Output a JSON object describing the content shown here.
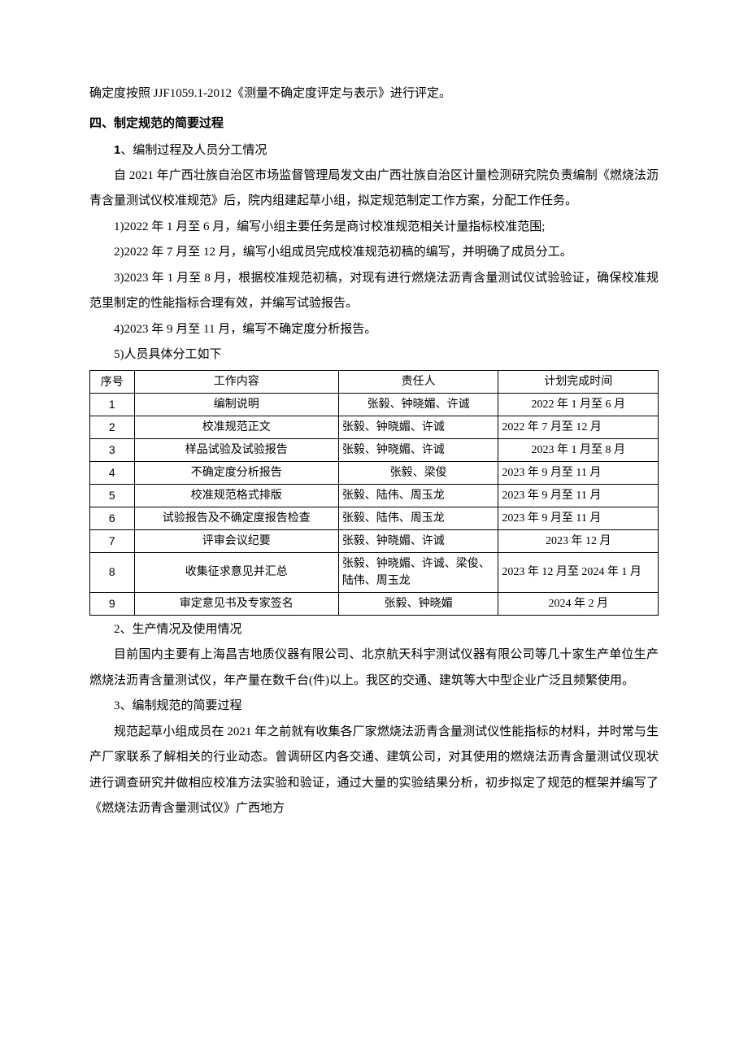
{
  "p_intro": "确定度按照 JJF1059.1-2012《测量不确定度评定与表示》进行评定。",
  "h4": "四、制定规范的简要过程",
  "s1_prefix": "1",
  "s1_rest": "、编制过程及人员分工情况",
  "p1": "自 2021 年广西壮族自治区市场监督管理局发文由广西壮族自治区计量检测研究院负责编制《燃烧法沥青含量测试仪校准规范》后，院内组建起草小组，拟定规范制定工作方案，分配工作任务。",
  "p2": "1)2022 年 1 月至 6 月，编写小组主要任务是商讨校准规范相关计量指标校准范围;",
  "p3": "2)2022 年 7 月至 12 月，编写小组成员完成校准规范初稿的编写，并明确了成员分工。",
  "p4": "3)2023 年 1 月至 8 月，根据校准规范初稿，对现有进行燃烧法沥青含量测试仪试验验证，确保校准规范里制定的性能指标合理有效，并编写试验报告。",
  "p5": "4)2023 年 9 月至 11 月，编写不确定度分析报告。",
  "p6": "5)人员具体分工如下",
  "table": {
    "headers": {
      "c1": "序号",
      "c2": "工作内容",
      "c3": "责任人",
      "c4": "计划完成时间"
    },
    "rows": [
      {
        "n": "1",
        "task": "编制说明",
        "person": "张毅、钟晓媚、许诚",
        "time": "2022 年 1 月至 6 月",
        "pc": true,
        "tc": true
      },
      {
        "n": "2",
        "task": "校准规范正文",
        "person": "张毅、钟晓媚、许诚",
        "time": "2022 年 7 月至 12 月",
        "pc": false,
        "tc": false
      },
      {
        "n": "3",
        "task": "样品试验及试验报告",
        "person": "张毅、钟晓媚、许诚",
        "time": "2023 年 1 月至 8 月",
        "pc": false,
        "tc": true
      },
      {
        "n": "4",
        "task": "不确定度分析报告",
        "person": "张毅、梁俊",
        "time": "2023 年 9 月至 11 月",
        "pc": true,
        "tc": false
      },
      {
        "n": "5",
        "task": "校准规范格式排版",
        "person": "张毅、陆伟、周玉龙",
        "time": "2023 年 9 月至 11 月",
        "pc": false,
        "tc": false
      },
      {
        "n": "6",
        "task": "试验报告及不确定度报告检查",
        "person": "张毅、陆伟、周玉龙",
        "time": "2023 年 9 月至 11 月",
        "pc": false,
        "tc": false
      },
      {
        "n": "7",
        "task": "评审会议纪要",
        "person": "张毅、钟晓媚、许诚",
        "time": "2023 年 12 月",
        "pc": false,
        "tc": true
      },
      {
        "n": "8",
        "task": "收集征求意见并汇总",
        "person": "张毅、钟晓媚、许诚、梁俊、陆伟、周玉龙",
        "time": "2023 年 12 月至 2024 年 1 月",
        "pc": false,
        "tc": false
      },
      {
        "n": "9",
        "task": "审定意见书及专家签名",
        "person": "张毅、钟晓媚",
        "time": "2024 年 2 月",
        "pc": true,
        "tc": true
      }
    ]
  },
  "s2": "2、生产情况及使用情况",
  "p7": "目前国内主要有上海昌吉地质仪器有限公司、北京航天科宇测试仪器有限公司等几十家生产单位生产燃烧法沥青含量测试仪，年产量在数千台(件)以上。我区的交通、建筑等大中型企业广泛且频繁使用。",
  "s3": "3、编制规范的简要过程",
  "p8": "规范起草小组成员在 2021 年之前就有收集各厂家燃烧法沥青含量测试仪性能指标的材料，并时常与生产厂家联系了解相关的行业动态。曾调研区内各交通、建筑公司，对其使用的燃烧法沥青含量测试仪现状进行调查研究并做相应校准方法实验和验证，通过大量的实验结果分析，初步拟定了规范的框架并编写了《燃烧法沥青含量测试仪》广西地方"
}
